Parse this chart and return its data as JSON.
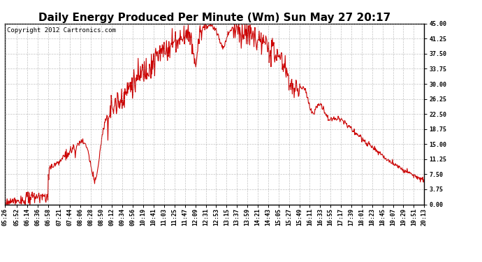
{
  "title": "Daily Energy Produced Per Minute (Wm) Sun May 27 20:17",
  "copyright": "Copyright 2012 Cartronics.com",
  "line_color": "#cc0000",
  "bg_color": "#ffffff",
  "plot_bg_color": "#ffffff",
  "grid_color": "#999999",
  "yticks": [
    0.0,
    3.75,
    7.5,
    11.25,
    15.0,
    18.75,
    22.5,
    26.25,
    30.0,
    33.75,
    37.5,
    41.25,
    45.0
  ],
  "ymin": 0.0,
  "ymax": 45.0,
  "xtick_labels": [
    "05:26",
    "05:52",
    "06:14",
    "06:36",
    "06:58",
    "07:21",
    "07:44",
    "08:06",
    "08:28",
    "08:50",
    "09:12",
    "09:34",
    "09:56",
    "10:19",
    "10:41",
    "11:03",
    "11:25",
    "11:47",
    "12:09",
    "12:31",
    "12:53",
    "13:15",
    "13:37",
    "13:59",
    "14:21",
    "14:43",
    "15:05",
    "15:27",
    "15:49",
    "16:11",
    "16:33",
    "16:55",
    "17:17",
    "17:39",
    "18:01",
    "18:23",
    "18:45",
    "19:07",
    "19:29",
    "19:51",
    "20:13"
  ],
  "title_fontsize": 11,
  "copyright_fontsize": 6.5,
  "tick_fontsize": 6,
  "line_width": 0.8
}
